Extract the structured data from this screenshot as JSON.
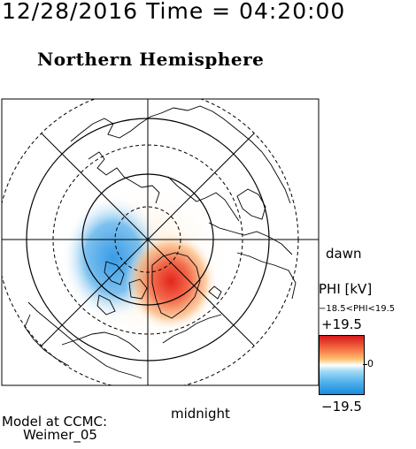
{
  "header": {
    "timestamp": "12/28/2016 Time = 04:20:00",
    "title": "Northern Hemisphere"
  },
  "map": {
    "projection": "polar",
    "dashed_latitude_rings": 3,
    "solid_latitude_rings": 2,
    "label_dawn": "dawn",
    "label_midnight": "midnight",
    "potential_cells": [
      {
        "sign": "negative",
        "quadrant": "noon-dusk",
        "color": "#3a9be6"
      },
      {
        "sign": "positive",
        "quadrant": "midnight-dawn",
        "color": "#e3261f"
      }
    ]
  },
  "colorbar": {
    "title": "PHI [kV]",
    "range_text": "−18.5<PHI<19.5",
    "max_label": "+19.5",
    "mid_label": "0",
    "min_label": "−19.5",
    "colors": [
      "#d7191c",
      "#f46d43",
      "#fdbf6f",
      "#ffffff",
      "#a6dcf7",
      "#56b3ec",
      "#1a8bdc"
    ]
  },
  "credit": {
    "line1": "Model at CCMC:",
    "line2": "Weimer_05"
  }
}
